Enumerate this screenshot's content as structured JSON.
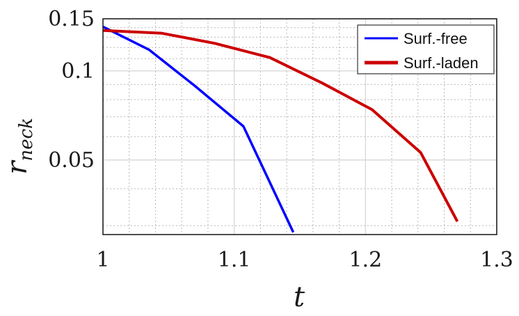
{
  "chart_data": {
    "type": "line",
    "title": "",
    "xlabel": "t",
    "ylabel_main": "r",
    "ylabel_sub": "neck",
    "xlim": [
      1.0,
      1.3
    ],
    "ylim": [
      0.028,
      0.15
    ],
    "yscale": "log",
    "grid": true,
    "minor_grid": true,
    "legend_position": "top-right",
    "x_ticks": [
      1.0,
      1.1,
      1.2,
      1.3
    ],
    "x_tick_labels": [
      "1",
      "1.1",
      "1.2",
      "1.3"
    ],
    "x_minor_ticks": [
      1.02,
      1.04,
      1.06,
      1.08,
      1.12,
      1.14,
      1.16,
      1.18,
      1.22,
      1.24,
      1.26,
      1.28
    ],
    "y_ticks": [
      0.05,
      0.1,
      0.15
    ],
    "y_tick_labels": [
      "0.05",
      "0.1",
      "0.15"
    ],
    "y_minor_ticks": [
      0.03,
      0.04,
      0.06,
      0.07,
      0.08,
      0.09,
      0.11,
      0.12,
      0.13,
      0.14
    ],
    "series": [
      {
        "name": "Surf.-free",
        "color": "#0000ff",
        "x": [
          1.0,
          1.035,
          1.07,
          1.107,
          1.145
        ],
        "y": [
          0.141,
          0.118,
          0.089,
          0.065,
          0.0285
        ]
      },
      {
        "name": "Surf.-laden",
        "color": "#cc0000",
        "x": [
          1.0,
          1.045,
          1.085,
          1.127,
          1.167,
          1.205,
          1.242,
          1.27
        ],
        "y": [
          0.137,
          0.134,
          0.124,
          0.111,
          0.091,
          0.074,
          0.053,
          0.031
        ]
      }
    ]
  }
}
